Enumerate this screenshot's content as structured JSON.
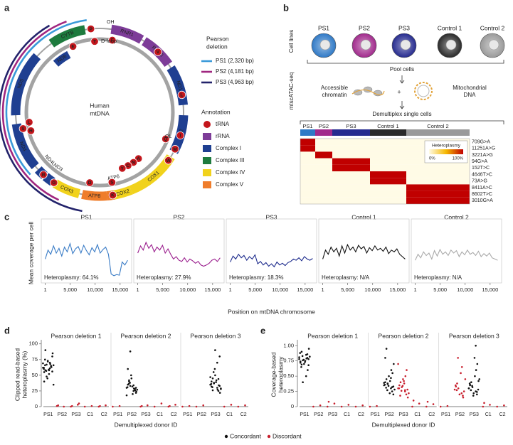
{
  "panel_labels": [
    "a",
    "b",
    "c",
    "d",
    "e"
  ],
  "panel_a": {
    "origin_h": "OH",
    "dloop": "D-loop",
    "origin_l": "OL",
    "center": [
      "Human",
      "mtDNA"
    ],
    "genes": [
      {
        "name": "CYTB",
        "color": "#1e7b3e"
      },
      {
        "name": "RNR1",
        "color": "#7d3c98"
      },
      {
        "name": "RNR2",
        "color": "#7d3c98"
      },
      {
        "name": "ND1",
        "color": "#1f3f91"
      },
      {
        "name": "ND2",
        "color": "#1f3f91"
      },
      {
        "name": "COX1",
        "color": "#f1d21c"
      },
      {
        "name": "COX2",
        "color": "#f1d21c"
      },
      {
        "name": "ATP6",
        "color": "#ef7d2b"
      },
      {
        "name": "ATP8",
        "color": "#ef7d2b"
      },
      {
        "name": "COX3",
        "color": "#f1d21c"
      },
      {
        "name": "ND3",
        "color": "#1f3f91"
      },
      {
        "name": "ND4L",
        "color": "#1f3f91"
      },
      {
        "name": "ND4",
        "color": "#1f3f91"
      },
      {
        "name": "ND5",
        "color": "#1f3f91"
      },
      {
        "name": "ND6",
        "color": "#1f3f91"
      }
    ],
    "trna": [
      "P",
      "F",
      "V",
      "L",
      "I",
      "Q",
      "M",
      "W",
      "A",
      "N",
      "C",
      "Y",
      "S",
      "D",
      "K",
      "G",
      "R",
      "H",
      "S",
      "L",
      "T",
      "E"
    ],
    "trna_color": "#c4161c",
    "deletion_title": [
      "Pearson",
      "deletion"
    ],
    "deletions": [
      {
        "name": "PS1 (2,320 bp)",
        "color": "#3a9ad9"
      },
      {
        "name": "PS2 (4,181 bp)",
        "color": "#a0267f"
      },
      {
        "name": "PS3 (4,963 bp)",
        "color": "#23236b"
      }
    ],
    "annotation_title": "Annotation",
    "annotations": [
      {
        "name": "tRNA",
        "color": "#c4161c"
      },
      {
        "name": "rRNA",
        "color": "#7d3c98"
      },
      {
        "name": "Complex I",
        "color": "#1f3f91"
      },
      {
        "name": "Complex III",
        "color": "#1e7b3e"
      },
      {
        "name": "Complex IV",
        "color": "#f1d21c"
      },
      {
        "name": "Complex V",
        "color": "#ef7d2b"
      }
    ]
  },
  "panel_b": {
    "cell_lines_label": "Cell lines",
    "method_label": "mtscATAC-seq",
    "pool": "Pool cells",
    "chromatin": [
      "Accessible",
      "chromatin"
    ],
    "plus": "+",
    "mtdna": [
      "Mitochondrial",
      "DNA"
    ],
    "demux": "Demultiplex single cells",
    "groups": [
      {
        "name": "PS1",
        "color": "#2f79c6"
      },
      {
        "name": "PS2",
        "color": "#a12a8c"
      },
      {
        "name": "PS3",
        "color": "#262b8f"
      },
      {
        "name": "Control 1",
        "color": "#2a2a2a"
      },
      {
        "name": "Control 2",
        "color": "#9a9a9a"
      }
    ],
    "variants": [
      "709G>A",
      "11251A>G",
      "3221A>G",
      "94G>A",
      "152T>C",
      "4646T>C",
      "73A>G",
      "8411A>C",
      "8602T>C",
      "3010G>A"
    ],
    "heteroplasmy": [
      [
        100,
        0,
        0,
        0,
        0
      ],
      [
        100,
        0,
        0,
        0,
        0
      ],
      [
        0,
        100,
        0,
        0,
        0
      ],
      [
        0,
        0,
        100,
        0,
        0
      ],
      [
        0,
        0,
        100,
        0,
        0
      ],
      [
        0,
        0,
        0,
        100,
        0
      ],
      [
        0,
        0,
        0,
        100,
        0
      ],
      [
        0,
        0,
        0,
        0,
        100
      ],
      [
        0,
        0,
        0,
        0,
        100
      ],
      [
        0,
        0,
        0,
        0,
        100
      ]
    ],
    "legend_title": "Heteroplasmy",
    "legend_ticks": [
      {
        "value": 0,
        "label": "0%"
      },
      {
        "value": 100,
        "label": "100%"
      }
    ]
  },
  "chart_data": [
    {
      "type": "line",
      "ylabel": "Mean coverage per cell",
      "xlabel": "Position on mtDNA chromosome",
      "x": [
        1,
        551,
        1101,
        1651,
        2201,
        2751,
        3301,
        3851,
        4401,
        4951,
        5501,
        6051,
        6601,
        7151,
        7701,
        8251,
        8801,
        9351,
        9901,
        10451,
        11001,
        11551,
        12101,
        12651,
        13201,
        13751,
        14301,
        14851,
        15401,
        15951,
        16501
      ],
      "xlim": [
        -800,
        17300
      ],
      "xticks": [
        1,
        {
          "value": 5000,
          "label": "5,000"
        },
        {
          "value": 10000,
          "label": "10,000"
        },
        {
          "value": 15000,
          "label": "15,000"
        }
      ],
      "ylim": [
        0,
        100
      ],
      "series": [
        {
          "name": "PS1",
          "color": "#3a7cc6",
          "annotation": "Heteroplasmy: 64.1%",
          "values": [
            40,
            55,
            48,
            62,
            50,
            58,
            45,
            60,
            52,
            66,
            49,
            57,
            61,
            50,
            63,
            54,
            47,
            59,
            52,
            64,
            50,
            56,
            60,
            48,
            15,
            12,
            14,
            13,
            35,
            30,
            38
          ]
        },
        {
          "name": "PS2",
          "color": "#9b1f8e",
          "annotation": "Heteroplasmy: 27.9%",
          "values": [
            50,
            62,
            55,
            68,
            58,
            64,
            52,
            60,
            55,
            63,
            50,
            57,
            48,
            40,
            44,
            38,
            36,
            42,
            35,
            40,
            37,
            33,
            36,
            30,
            28,
            30,
            33,
            38,
            40,
            36,
            42
          ]
        },
        {
          "name": "PS3",
          "color": "#1c2a8c",
          "annotation": "Heteroplasmy: 18.3%",
          "values": [
            35,
            45,
            40,
            48,
            42,
            46,
            38,
            44,
            40,
            47,
            32,
            36,
            30,
            34,
            28,
            32,
            27,
            35,
            30,
            33,
            29,
            34,
            36,
            40,
            38,
            42,
            37,
            44,
            40,
            38,
            41
          ]
        },
        {
          "name": "Control 1",
          "color": "#111111",
          "annotation": "Heteroplasmy: N/A",
          "values": [
            40,
            55,
            48,
            60,
            52,
            58,
            45,
            62,
            50,
            64,
            55,
            60,
            52,
            63,
            57,
            61,
            50,
            59,
            54,
            62,
            55,
            58,
            53,
            60,
            49,
            55,
            52,
            57,
            48,
            44,
            40
          ]
        },
        {
          "name": "Control 2",
          "color": "#aaaaaa",
          "annotation": "Heteroplasmy: N/A",
          "values": [
            38,
            48,
            42,
            52,
            46,
            50,
            40,
            54,
            45,
            56,
            48,
            52,
            46,
            55,
            50,
            54,
            44,
            52,
            47,
            55,
            48,
            51,
            46,
            53,
            44,
            49,
            45,
            50,
            42,
            40,
            38
          ]
        }
      ]
    },
    {
      "type": "swarm",
      "series": [
        {
          "name": "Concordant",
          "color": "#111111"
        },
        {
          "name": "Discordant",
          "color": "#c8202e"
        }
      ],
      "plots": [
        {
          "ylabel": [
            "Clipped read-based",
            "heteroplasmy (%)"
          ],
          "xlabel": "Demultiplexed donor ID",
          "ylim": [
            0,
            102
          ],
          "yticks": [
            0,
            25,
            50,
            75,
            100
          ],
          "categories": [
            "PS1",
            "PS2",
            "PS3",
            "C1",
            "C2"
          ],
          "subplots": [
            {
              "title": "Pearson deletion 1",
              "values": [
                [
                  [
                    62,
                    70,
                    55,
                    65,
                    58,
                    80,
                    48,
                    66,
                    72,
                    60,
                    52,
                    75,
                    68,
                    57,
                    63,
                    45,
                    85,
                    59,
                    69,
                    61,
                    40,
                    64,
                    90,
                    56,
                    67,
                    35,
                    73,
                    62,
                    58,
                    66
                  ],
                  [],
                  [],
                  [],
                  []
                ],
                [
                  [],
                  [
                    1,
                    0,
                    2
                  ],
                  [
                    0,
                    3,
                    1,
                    5
                  ],
                  [
                    0,
                    1
                  ],
                  [
                    0,
                    2,
                    1
                  ]
                ]
              ]
            },
            {
              "title": "Pearson deletion 2",
              "values": [
                [
                  [],
                  [
                    30,
                    25,
                    35,
                    28,
                    40,
                    22,
                    33,
                    27,
                    45,
                    31,
                    20,
                    36,
                    29,
                    38,
                    26,
                    50,
                    24,
                    32,
                    18,
                    34,
                    60,
                    28,
                    42,
                    30,
                    88
                  ],
                  [],
                  [],
                  []
                ],
                [
                  [
                    0,
                    1
                  ],
                  [],
                  [
                    0,
                    2,
                    1
                  ],
                  [
                    0,
                    5
                  ],
                  [
                    0,
                    3,
                    1
                  ]
                ]
              ]
            },
            {
              "title": "Pearson deletion 3",
              "values": [
                [
                  [],
                  [],
                  [
                    35,
                    30,
                    40,
                    25,
                    45,
                    33,
                    38,
                    28,
                    50,
                    36,
                    42,
                    31,
                    27,
                    55,
                    34,
                    60,
                    22,
                    39,
                    47,
                    70,
                    32,
                    44,
                    26,
                    80,
                    37,
                    29,
                    90
                  ],
                  [],
                  []
                ],
                [
                  [
                    0,
                    1
                  ],
                  [
                    0,
                    2
                  ],
                  [],
                  [
                    0,
                    3
                  ],
                  [
                    0,
                    2
                  ]
                ]
              ]
            }
          ]
        },
        {
          "ylabel": [
            "Coverage-based",
            "heteroplasmy"
          ],
          "xlabel": "Demultiplexed donor ID",
          "ylim": [
            0,
            1.05
          ],
          "yticks": [
            0,
            0.25,
            {
              "value": 0.5,
              "label": "0.50"
            },
            0.75,
            {
              "value": 1,
              "label": "1.00"
            }
          ],
          "categories": [
            "PS1",
            "PS2",
            "PS3",
            "C1",
            "C2"
          ],
          "subplots": [
            {
              "title": "Pearson deletion 1",
              "values": [
                [
                  [
                    0.78,
                    0.85,
                    0.72,
                    0.8,
                    0.9,
                    0.68,
                    0.76,
                    0.82,
                    0.7,
                    0.88,
                    0.75,
                    0.65,
                    0.79,
                    0.83,
                    0.6,
                    0.77,
                    0.95,
                    0.73,
                    0.81,
                    0.5,
                    0.74,
                    0.86,
                    0.69,
                    0.78,
                    0.4
                  ],
                  [],
                  [],
                  [],
                  []
                ],
                [
                  [],
                  [
                    0,
                    0.02
                  ],
                  [
                    0,
                    0.05,
                    0.08
                  ],
                  [
                    0,
                    0.03
                  ],
                  [
                    0,
                    0.02
                  ]
                ]
              ]
            },
            {
              "title": "Pearson deletion 2",
              "values": [
                [
                  [],
                  [
                    0.35,
                    0.3,
                    0.4,
                    0.25,
                    0.45,
                    0.33,
                    0.38,
                    0.28,
                    0.5,
                    0.36,
                    0.42,
                    0.31,
                    0.6,
                    0.27,
                    0.55,
                    0.34,
                    0.7,
                    0.22,
                    0.39,
                    0.47,
                    0.8,
                    0.32,
                    0.95,
                    0.2,
                    0.37
                  ],
                  [],
                  [],
                  []
                ],
                [
                  [
                    0,
                    0.01
                  ],
                  [],
                  [
                    0.3,
                    0.25,
                    0.35,
                    0.2,
                    0.4,
                    0.28,
                    0.32,
                    0.22,
                    0.45,
                    0.3,
                    0.38,
                    0.18,
                    0.5,
                    0.26,
                    0.6,
                    0.34,
                    0.15,
                    0.42,
                    0.7,
                    0.27
                  ],
                  [
                    0,
                    0.05,
                    0.1
                  ],
                  [
                    0,
                    0.04,
                    0.08
                  ]
                ]
              ]
            },
            {
              "title": "Pearson deletion 3",
              "values": [
                [
                  [],
                  [],
                  [
                    0.3,
                    0.25,
                    0.35,
                    0.2,
                    0.4,
                    0.28,
                    0.32,
                    0.45,
                    0.22,
                    0.38,
                    0.5,
                    0.27,
                    0.6,
                    0.34,
                    0.7,
                    0.18,
                    0.42,
                    0.8,
                    0.3,
                    1.0,
                    0.36,
                    0.24
                  ],
                  [],
                  []
                ],
                [
                  [
                    0,
                    0.01
                  ],
                  [
                    0.28,
                    0.22,
                    0.33,
                    0.18,
                    0.38,
                    0.25,
                    0.3,
                    0.45,
                    0.2,
                    0.35,
                    0.55,
                    0.27,
                    0.65,
                    0.8,
                    0.15
                  ],
                  [],
                  [
                    0,
                    0.03,
                    0.06
                  ],
                  [
                    0,
                    0.02
                  ]
                ]
              ]
            }
          ]
        }
      ]
    }
  ]
}
